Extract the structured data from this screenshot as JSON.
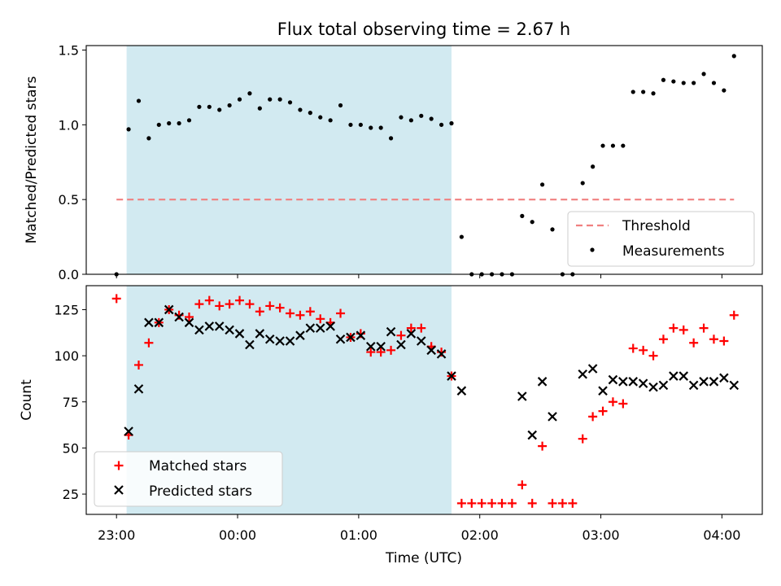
{
  "figure": {
    "title": "Flux total observing time = 2.67 h",
    "xlabel": "Time (UTC)",
    "xticks": [
      {
        "t": 0,
        "label": "23:00"
      },
      {
        "t": 60,
        "label": "00:00"
      },
      {
        "t": 120,
        "label": "01:00"
      },
      {
        "t": 180,
        "label": "02:00"
      },
      {
        "t": 240,
        "label": "03:00"
      },
      {
        "t": 300,
        "label": "04:00"
      }
    ],
    "xlim": [
      -15,
      320
    ],
    "shaded_span": [
      5,
      166
    ],
    "colors": {
      "shade": "#add8e6",
      "threshold": "#f08080",
      "matched": "#ff0000",
      "predicted": "#000000",
      "measurement": "#000000"
    }
  },
  "chart_data": [
    {
      "type": "scatter",
      "ylabel": "Matched/Predicted stars",
      "ylim": [
        0,
        1.53
      ],
      "yticks": [
        0.0,
        0.5,
        1.0,
        1.5
      ],
      "ytick_labels": [
        "0.0",
        "0.5",
        "1.0",
        "1.5"
      ],
      "legend_position": "lower-right",
      "threshold": {
        "name": "Threshold",
        "value": 0.5,
        "x_range": [
          0,
          306
        ]
      },
      "series": [
        {
          "name": "Measurements",
          "x": [
            0,
            6,
            11,
            16,
            21,
            26,
            31,
            36,
            41,
            46,
            51,
            56,
            61,
            66,
            71,
            76,
            81,
            86,
            91,
            96,
            101,
            106,
            111,
            116,
            121,
            126,
            131,
            136,
            141,
            146,
            151,
            156,
            161,
            166,
            171,
            176,
            181,
            186,
            191,
            196,
            201,
            206,
            211,
            216,
            221,
            226,
            231,
            236,
            241,
            246,
            251,
            256,
            261,
            266,
            271,
            276,
            281,
            286,
            291,
            296,
            301,
            306
          ],
          "y": [
            0.0,
            0.97,
            1.16,
            0.91,
            1.0,
            1.01,
            1.01,
            1.03,
            1.12,
            1.12,
            1.1,
            1.13,
            1.17,
            1.21,
            1.11,
            1.17,
            1.17,
            1.15,
            1.1,
            1.08,
            1.05,
            1.03,
            1.13,
            1.0,
            1.0,
            0.98,
            0.98,
            0.91,
            1.05,
            1.03,
            1.06,
            1.04,
            1.0,
            1.01,
            0.25,
            0.0,
            0.0,
            0.0,
            0.0,
            0.0,
            0.39,
            0.35,
            0.6,
            0.3,
            0.0,
            0.0,
            0.61,
            0.72,
            0.86,
            0.86,
            0.86,
            1.22,
            1.22,
            1.21,
            1.3,
            1.29,
            1.28,
            1.28,
            1.34,
            1.28,
            1.23,
            1.46
          ]
        }
      ]
    },
    {
      "type": "scatter",
      "ylabel": "Count",
      "ylim": [
        14,
        138
      ],
      "yticks": [
        25,
        50,
        75,
        100,
        125
      ],
      "legend_position": "lower-left",
      "x": [
        0,
        6,
        11,
        16,
        21,
        26,
        31,
        36,
        41,
        46,
        51,
        56,
        61,
        66,
        71,
        76,
        81,
        86,
        91,
        96,
        101,
        106,
        111,
        116,
        121,
        126,
        131,
        136,
        141,
        146,
        151,
        156,
        161,
        166,
        171,
        176,
        181,
        186,
        191,
        196,
        201,
        206,
        211,
        216,
        221,
        226,
        231,
        236,
        241,
        246,
        251,
        256,
        261,
        266,
        271,
        276,
        281,
        286,
        291,
        296,
        301,
        306
      ],
      "series": [
        {
          "name": "Matched stars",
          "marker": "plus",
          "values": [
            131,
            57,
            95,
            107,
            118,
            125,
            122,
            121,
            128,
            130,
            127,
            128,
            130,
            128,
            124,
            127,
            126,
            123,
            122,
            124,
            120,
            118,
            123,
            110,
            112,
            102,
            102,
            103,
            111,
            115,
            115,
            105,
            102,
            89,
            20,
            20,
            20,
            20,
            20,
            20,
            30,
            20,
            51,
            20,
            20,
            20,
            55,
            67,
            70,
            75,
            74,
            104,
            103,
            100,
            109,
            115,
            114,
            107,
            115,
            109,
            108,
            122
          ]
        },
        {
          "name": "Predicted stars",
          "marker": "x",
          "values": [
            null,
            59,
            82,
            118,
            118,
            125,
            121,
            118,
            114,
            116,
            116,
            114,
            112,
            106,
            112,
            109,
            108,
            108,
            111,
            115,
            115,
            116,
            109,
            110,
            111,
            105,
            105,
            113,
            106,
            112,
            108,
            103,
            101,
            89,
            81,
            null,
            null,
            null,
            null,
            null,
            78,
            57,
            86,
            67,
            null,
            null,
            90,
            93,
            81,
            87,
            86,
            86,
            85,
            83,
            84,
            89,
            89,
            84,
            86,
            86,
            88,
            84
          ]
        }
      ]
    }
  ]
}
